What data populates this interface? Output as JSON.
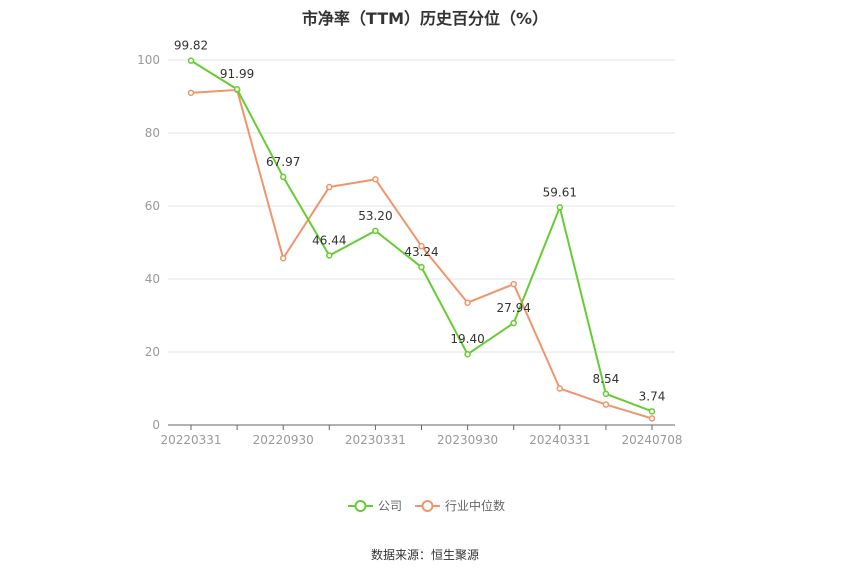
{
  "chart_data": {
    "type": "line",
    "title": "市净率（TTM）历史百分位（%）",
    "xlabel": "",
    "ylabel": "",
    "ylim": [
      0,
      100
    ],
    "yticks": [
      0,
      20,
      40,
      60,
      80,
      100
    ],
    "x_tick_labels": [
      "20220331",
      "20220930",
      "20230331",
      "20230930",
      "20240331",
      "20240708"
    ],
    "x": [
      "20220331",
      "20220630",
      "20220930",
      "20221230",
      "20230331",
      "20230630",
      "20230930",
      "20231229",
      "20240331",
      "20240630",
      "20240708"
    ],
    "series": [
      {
        "name": "公司",
        "color": "#66cc33",
        "values": [
          99.82,
          91.99,
          67.97,
          46.44,
          53.2,
          43.24,
          19.4,
          27.94,
          59.61,
          8.54,
          3.74
        ],
        "labels": [
          "99.82",
          "91.99",
          "67.97",
          "46.44",
          "53.20",
          "43.24",
          "19.40",
          "27.94",
          "59.61",
          "8.54",
          "3.74"
        ]
      },
      {
        "name": "行业中位数",
        "color": "#f2946b",
        "values": [
          91.0,
          91.8,
          45.7,
          65.2,
          67.3,
          49.0,
          33.5,
          38.6,
          10.0,
          5.6,
          1.8
        ]
      }
    ],
    "legend_position": "bottom",
    "grid": true,
    "source": "数据来源：恒生聚源"
  }
}
